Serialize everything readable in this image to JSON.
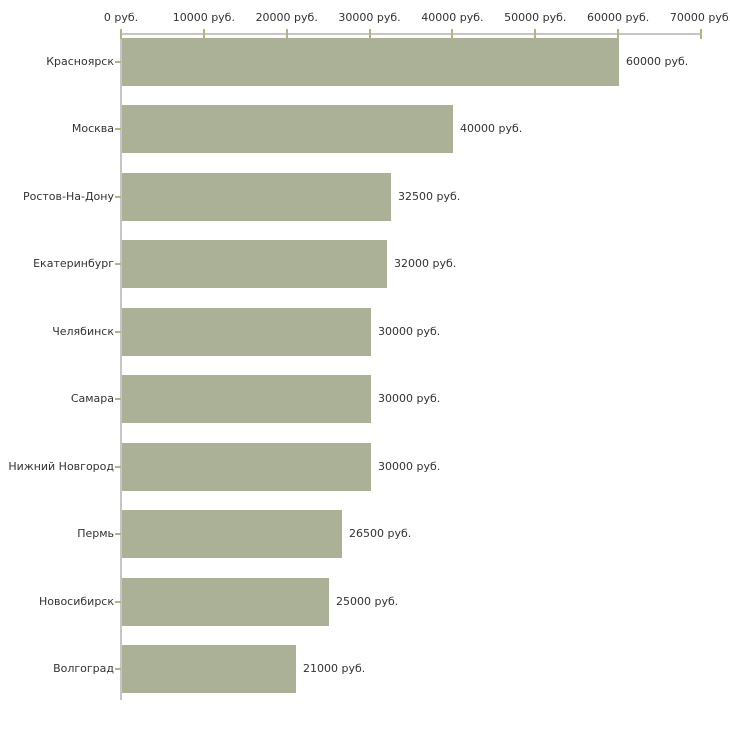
{
  "chart_data": {
    "type": "bar",
    "orientation": "horizontal",
    "title": "",
    "unit": "руб.",
    "categories": [
      "Красноярск",
      "Москва",
      "Ростов-На-Дону",
      "Екатеринбург",
      "Челябинск",
      "Самара",
      "Нижний Новгород",
      "Пермь",
      "Новосибирск",
      "Волгоград"
    ],
    "values": [
      60000,
      40000,
      32500,
      32000,
      30000,
      30000,
      30000,
      26500,
      25000,
      21000
    ],
    "value_labels": [
      "60000 руб.",
      "40000 руб.",
      "32500 руб.",
      "32000 руб.",
      "30000 руб.",
      "30000 руб.",
      "30000 руб.",
      "26500 руб.",
      "25000 руб.",
      "21000 руб."
    ],
    "x_axis": {
      "position": "top",
      "min": 0,
      "max": 70000,
      "tick_step": 10000,
      "tick_labels": [
        "0 руб.",
        "10000 руб.",
        "20000 руб.",
        "30000 руб.",
        "40000 руб.",
        "50000 руб.",
        "60000 руб.",
        "70000 руб."
      ]
    },
    "ylim": [
      0,
      70000
    ],
    "grid": false,
    "legend": false,
    "colors": {
      "bar": "#abb197",
      "axis": "#c5c5c5",
      "tick": "#b4b482",
      "text": "#333333",
      "background": "#ffffff"
    }
  }
}
